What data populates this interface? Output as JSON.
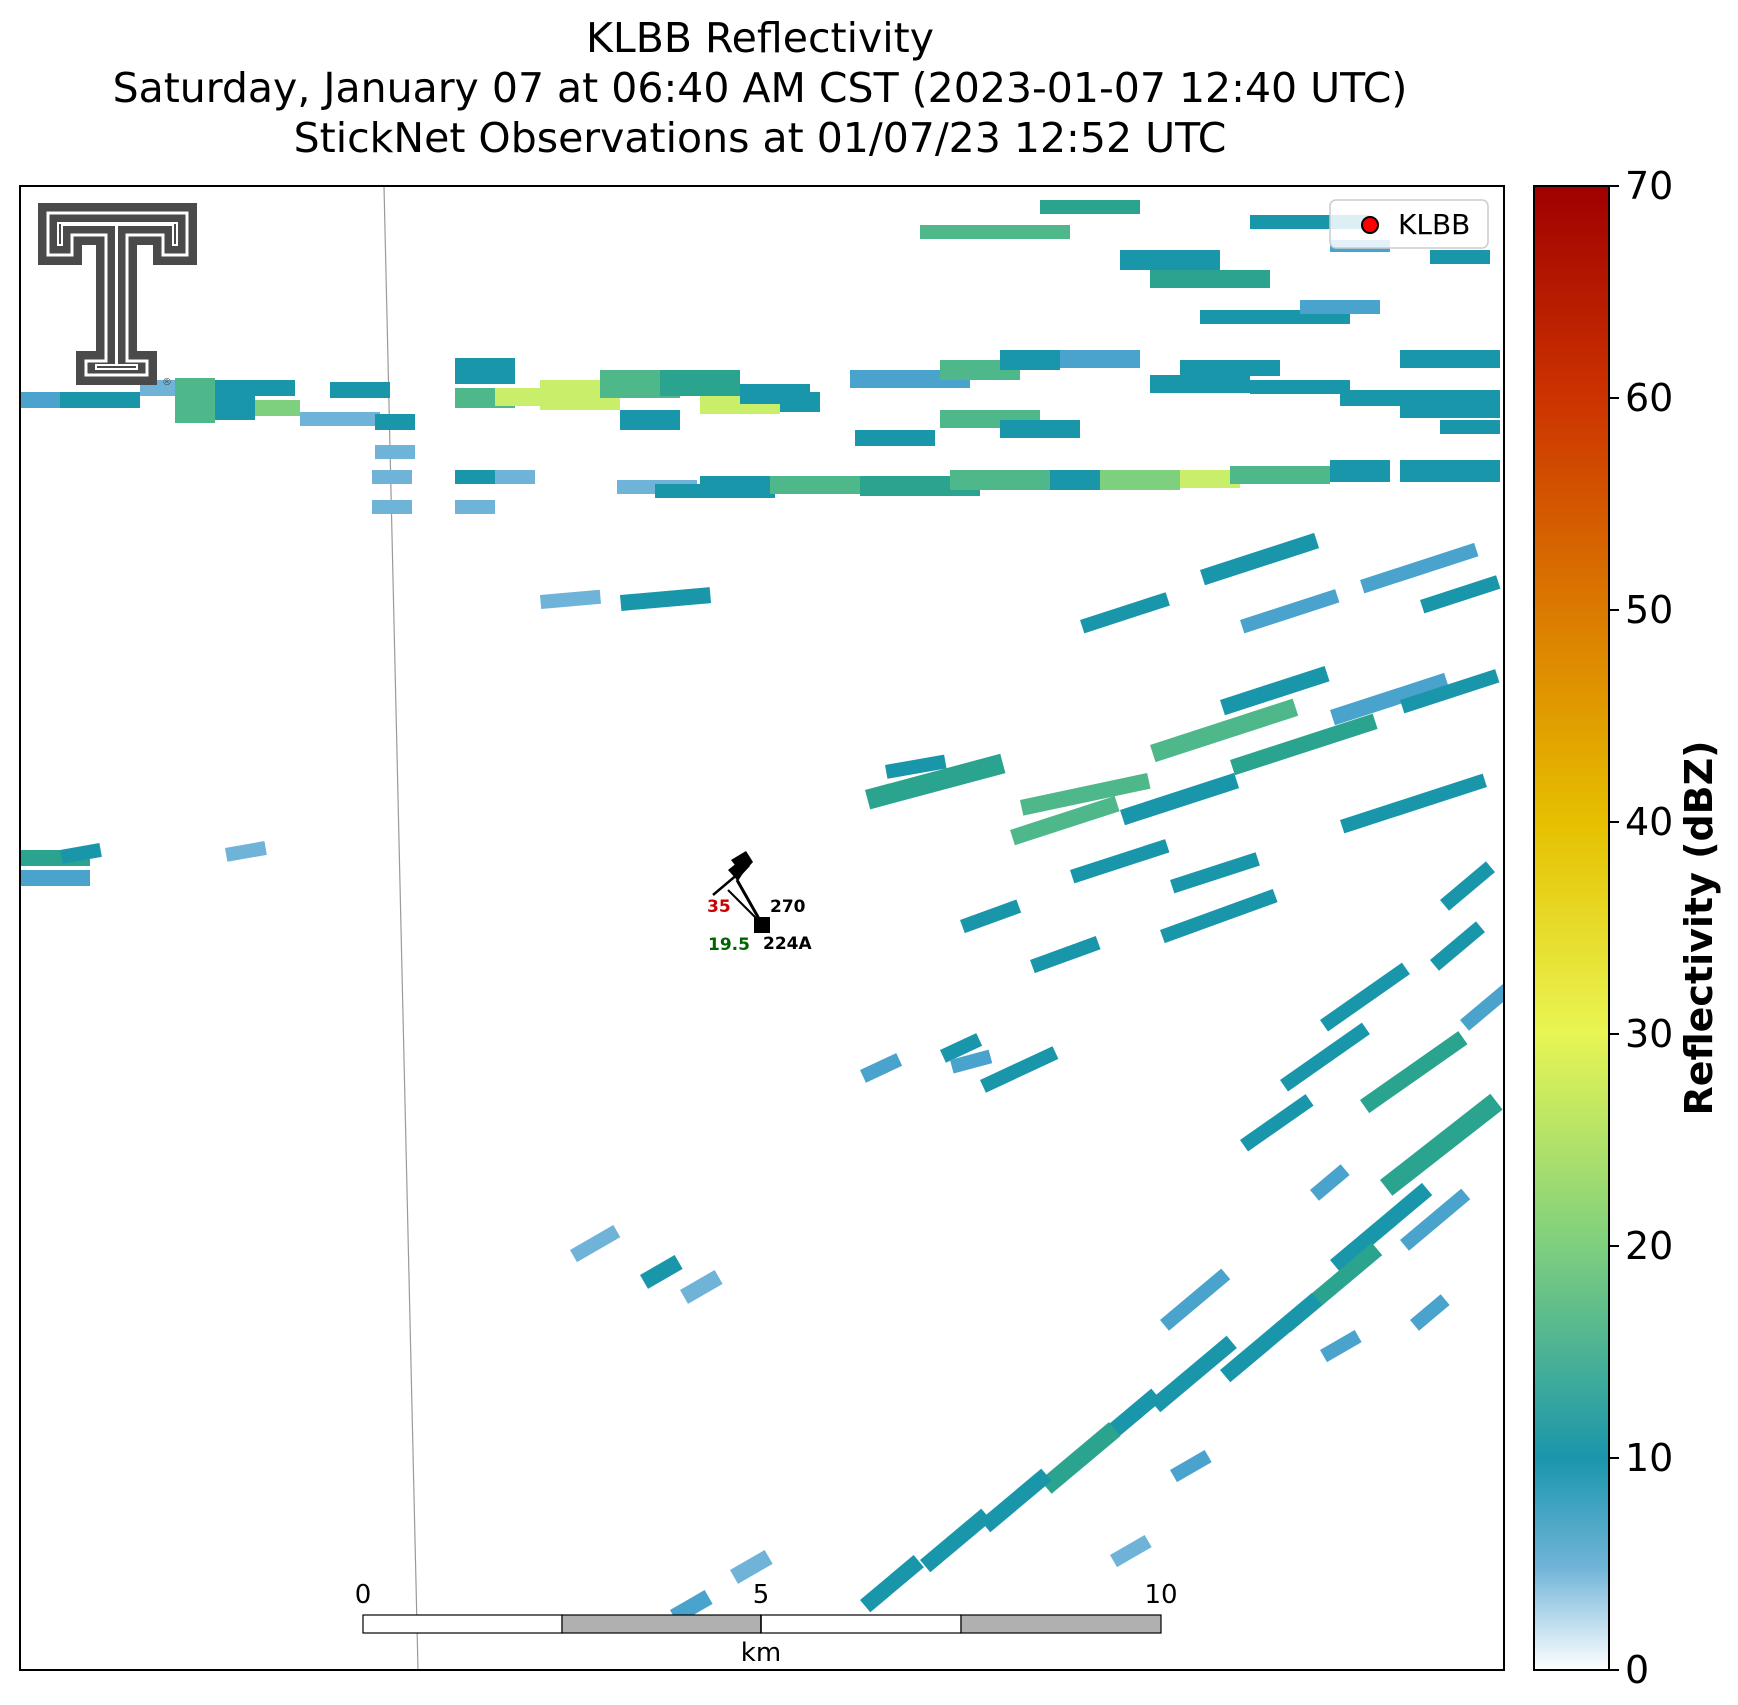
{
  "chart_data": {
    "type": "heatmap",
    "title": [
      "KLBB Reflectivity",
      "Saturday, January 07 at 06:40 AM CST (2023-01-07 12:40 UTC)",
      "StickNet Observations at 01/07/23 12:52 UTC"
    ],
    "colorbar": {
      "label": "Reflectivity (dBZ)",
      "range": [
        0,
        70
      ],
      "ticks": [
        0,
        10,
        20,
        30,
        40,
        50,
        60,
        70
      ],
      "colors": [
        {
          "value": 0,
          "color": "#ffffff"
        },
        {
          "value": 5,
          "color": "#6fb3d8"
        },
        {
          "value": 10,
          "color": "#1a96ab"
        },
        {
          "value": 20,
          "color": "#7ecf7e"
        },
        {
          "value": 30,
          "color": "#e8f553"
        },
        {
          "value": 40,
          "color": "#e6c000"
        },
        {
          "value": 50,
          "color": "#db7a00"
        },
        {
          "value": 60,
          "color": "#cc3300"
        },
        {
          "value": 70,
          "color": "#a00000"
        }
      ]
    },
    "legend": {
      "entries": [
        "KLBB"
      ],
      "marker_color": "#ff0000",
      "placement": "top-right"
    },
    "station": {
      "id": "224A",
      "temperature": "35",
      "dewpoint": "19.5",
      "pressure_or_value": "270",
      "temperature_color": "#cc0000",
      "dewpoint_color": "#006400"
    },
    "scalebar": {
      "ticks": [
        "0",
        "5",
        "10"
      ],
      "unit": "km",
      "max_km": 10
    }
  },
  "logo": {
    "name": "texas-tech-double-t-logo",
    "text": "®"
  }
}
